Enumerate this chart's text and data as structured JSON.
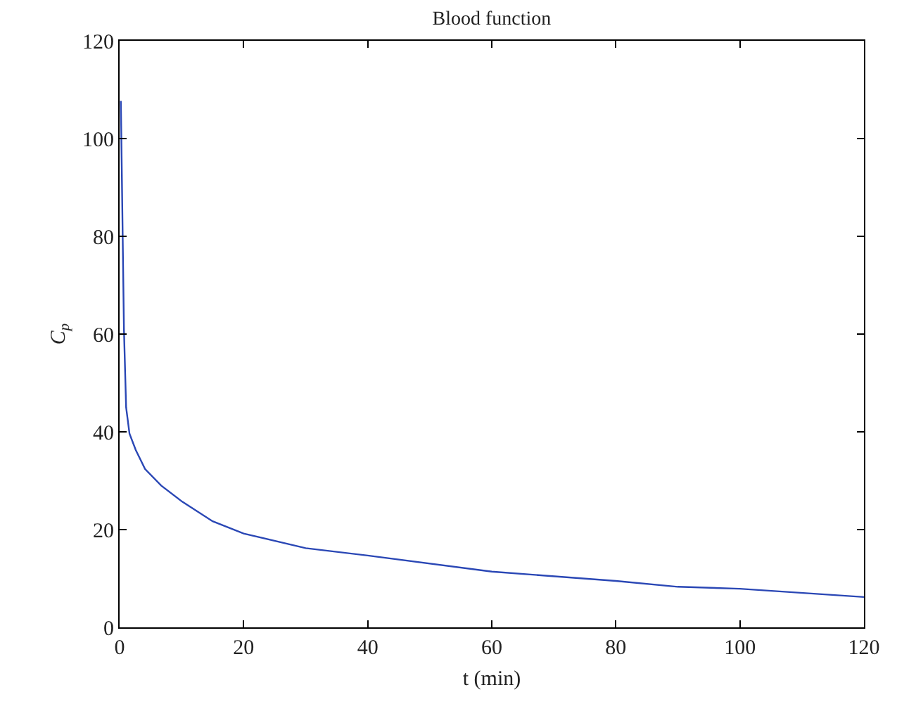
{
  "chart_data": {
    "type": "line",
    "title": "Blood function",
    "xlabel": "t (min)",
    "ylabel": "C$_{p}$",
    "x": [
      0.2,
      0.7,
      1.05,
      1.6,
      2.6,
      4.1,
      6.7,
      10.1,
      15,
      20,
      30,
      40,
      60,
      80,
      90,
      100,
      120
    ],
    "series": [
      {
        "color": "#2a47b5",
        "values": [
          107.7,
          61,
          45,
          39.6,
          36.3,
          32.4,
          29,
          25.7,
          21.7,
          19.2,
          16.2,
          14.7,
          11.4,
          9.5,
          8.3,
          7.9,
          6.2
        ]
      }
    ],
    "xlim": [
      0,
      120
    ],
    "xticks": [
      0,
      20,
      40,
      60,
      80,
      100,
      120
    ],
    "ylim": [
      0,
      120
    ],
    "yticks": [
      0,
      20,
      40,
      60,
      80,
      100,
      120
    ],
    "marker": "none",
    "line_style": "solid"
  }
}
